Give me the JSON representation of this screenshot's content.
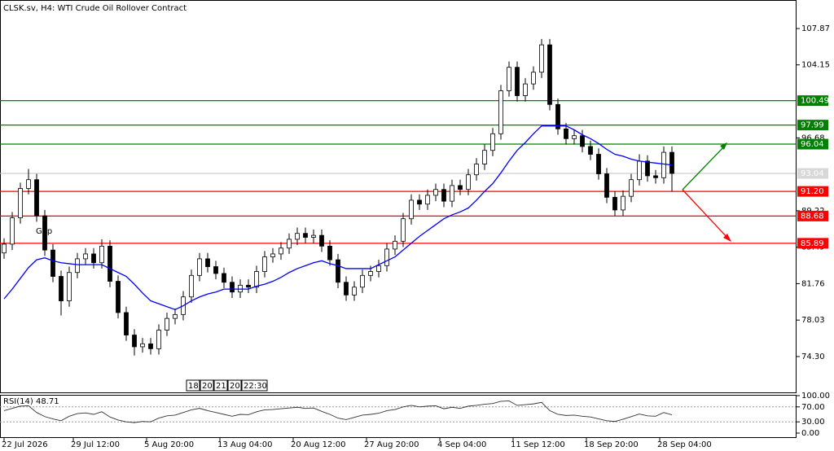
{
  "chart_data": {
    "type": "candlestick",
    "title": "CLSK.sv, H4:  WTI Crude Oil Rollover Contract",
    "annotation": "Gap",
    "candles": [
      [
        84.9,
        86.4,
        84.3,
        85.8
      ],
      [
        85.8,
        89.1,
        85.2,
        88.5
      ],
      [
        88.5,
        92.1,
        87.9,
        91.5
      ],
      [
        91.5,
        93.5,
        90.9,
        92.4
      ],
      [
        92.4,
        93.0,
        88.1,
        88.7
      ],
      [
        88.7,
        89.3,
        84.6,
        85.2
      ],
      [
        85.2,
        85.8,
        81.9,
        82.5
      ],
      [
        82.5,
        83.1,
        78.5,
        80.0
      ],
      [
        80.0,
        83.5,
        79.4,
        82.9
      ],
      [
        82.9,
        84.9,
        82.3,
        84.3
      ],
      [
        84.3,
        85.4,
        83.7,
        84.8
      ],
      [
        84.8,
        85.4,
        83.3,
        83.9
      ],
      [
        83.9,
        86.3,
        83.3,
        85.6
      ],
      [
        85.6,
        86.2,
        81.4,
        82.0
      ],
      [
        82.0,
        82.6,
        78.2,
        78.8
      ],
      [
        78.8,
        79.4,
        75.9,
        76.5
      ],
      [
        76.5,
        77.1,
        74.4,
        75.3
      ],
      [
        75.3,
        76.2,
        74.7,
        75.6
      ],
      [
        75.6,
        76.2,
        74.5,
        75.1
      ],
      [
        75.1,
        77.6,
        74.5,
        77.0
      ],
      [
        77.0,
        78.8,
        76.4,
        78.2
      ],
      [
        78.2,
        79.2,
        77.6,
        78.6
      ],
      [
        78.6,
        81.0,
        78.0,
        80.4
      ],
      [
        80.4,
        83.2,
        79.8,
        82.6
      ],
      [
        82.6,
        84.9,
        82.0,
        84.3
      ],
      [
        84.3,
        84.9,
        82.9,
        83.5
      ],
      [
        83.5,
        84.1,
        82.2,
        82.8
      ],
      [
        82.8,
        83.4,
        81.3,
        81.9
      ],
      [
        81.9,
        82.5,
        80.3,
        80.9
      ],
      [
        80.9,
        82.2,
        80.3,
        81.6
      ],
      [
        81.6,
        82.2,
        80.8,
        81.4
      ],
      [
        81.4,
        83.6,
        80.8,
        83.0
      ],
      [
        83.0,
        85.1,
        82.4,
        84.5
      ],
      [
        84.5,
        85.4,
        83.9,
        84.8
      ],
      [
        84.8,
        86.0,
        84.2,
        85.4
      ],
      [
        85.4,
        86.9,
        84.8,
        86.3
      ],
      [
        86.3,
        87.5,
        85.7,
        86.9
      ],
      [
        86.9,
        87.5,
        85.9,
        86.5
      ],
      [
        86.5,
        87.3,
        85.9,
        86.7
      ],
      [
        86.7,
        87.3,
        85.0,
        85.6
      ],
      [
        85.6,
        86.2,
        83.6,
        84.2
      ],
      [
        84.2,
        84.8,
        81.3,
        81.9
      ],
      [
        81.9,
        82.5,
        80.0,
        80.6
      ],
      [
        80.6,
        82.0,
        80.0,
        81.4
      ],
      [
        81.4,
        83.2,
        80.8,
        82.6
      ],
      [
        82.6,
        83.6,
        82.0,
        83.0
      ],
      [
        83.0,
        84.2,
        82.4,
        83.6
      ],
      [
        83.6,
        85.9,
        83.0,
        85.3
      ],
      [
        85.3,
        86.7,
        84.7,
        86.1
      ],
      [
        86.1,
        89.0,
        85.5,
        88.4
      ],
      [
        88.4,
        90.9,
        87.8,
        90.3
      ],
      [
        90.3,
        90.9,
        89.3,
        89.9
      ],
      [
        89.9,
        91.4,
        89.3,
        90.8
      ],
      [
        90.8,
        92.0,
        90.2,
        91.4
      ],
      [
        91.4,
        92.0,
        89.6,
        90.2
      ],
      [
        90.2,
        92.4,
        89.6,
        91.8
      ],
      [
        91.8,
        92.4,
        90.8,
        91.4
      ],
      [
        91.4,
        93.5,
        90.8,
        92.9
      ],
      [
        92.9,
        94.6,
        92.3,
        94.0
      ],
      [
        94.0,
        96.0,
        93.4,
        95.4
      ],
      [
        95.4,
        97.7,
        94.8,
        97.1
      ],
      [
        97.1,
        102.1,
        96.5,
        101.5
      ],
      [
        101.5,
        104.5,
        100.9,
        103.9
      ],
      [
        103.9,
        104.5,
        100.4,
        101.0
      ],
      [
        101.0,
        102.8,
        100.4,
        102.2
      ],
      [
        102.2,
        104.0,
        101.6,
        103.4
      ],
      [
        103.4,
        106.8,
        102.8,
        106.2
      ],
      [
        106.2,
        106.8,
        99.5,
        100.1
      ],
      [
        100.1,
        100.7,
        97.0,
        97.6
      ],
      [
        97.6,
        98.2,
        96.0,
        96.6
      ],
      [
        96.6,
        97.5,
        96.0,
        96.9
      ],
      [
        96.9,
        97.5,
        95.2,
        95.8
      ],
      [
        95.8,
        96.4,
        94.4,
        95.0
      ],
      [
        95.0,
        95.6,
        92.4,
        93.0
      ],
      [
        93.0,
        93.6,
        90.0,
        90.6
      ],
      [
        90.6,
        91.2,
        88.7,
        89.3
      ],
      [
        89.3,
        91.3,
        88.7,
        90.7
      ],
      [
        90.7,
        93.0,
        90.1,
        92.4
      ],
      [
        92.4,
        95.0,
        91.8,
        94.3
      ],
      [
        94.3,
        94.9,
        92.2,
        92.8
      ],
      [
        92.8,
        93.4,
        92.0,
        92.6
      ],
      [
        92.6,
        95.8,
        92.0,
        95.2
      ],
      [
        95.2,
        95.8,
        91.2,
        93.04
      ]
    ],
    "moving_average": {
      "color": "#0000ff",
      "values": [
        80.2,
        81.2,
        82.3,
        83.4,
        84.2,
        84.4,
        84.1,
        83.9,
        83.8,
        83.7,
        83.7,
        83.7,
        83.7,
        83.3,
        82.9,
        82.5,
        81.7,
        80.8,
        80.0,
        79.7,
        79.4,
        79.1,
        79.5,
        80.0,
        80.4,
        80.7,
        80.9,
        81.2,
        81.2,
        81.2,
        81.2,
        81.5,
        81.7,
        82.0,
        82.4,
        82.9,
        83.3,
        83.6,
        83.9,
        84.1,
        83.8,
        83.6,
        83.3,
        83.3,
        83.3,
        83.3,
        83.7,
        84.1,
        84.5,
        85.2,
        85.9,
        86.6,
        87.2,
        87.8,
        88.4,
        88.8,
        89.1,
        89.5,
        90.3,
        91.2,
        92.0,
        93.1,
        94.3,
        95.4,
        96.2,
        97.1,
        97.9,
        97.9,
        97.9,
        97.9,
        97.5,
        97.0,
        96.6,
        96.1,
        95.5,
        95.0,
        94.8,
        94.5,
        94.3,
        94.2,
        94.1,
        94.0,
        93.9
      ]
    },
    "levels": [
      {
        "value": 100.49,
        "label": "100.49",
        "color": "#008000"
      },
      {
        "value": 97.99,
        "label": "97.99",
        "color": "#008000"
      },
      {
        "value": 96.04,
        "label": "96.04",
        "color": "#008000"
      },
      {
        "value": 91.2,
        "label": "91.20",
        "color": "#ff0000"
      },
      {
        "value": 88.68,
        "label": "88.68",
        "color": "#ff0000"
      },
      {
        "value": 85.89,
        "label": "85.89",
        "color": "#ff0000"
      }
    ],
    "current_price": 93.04,
    "ylim": [
      70.63,
      110.79
    ],
    "yticks": [
      107.87,
      104.15,
      96.68,
      89.22,
      85.49,
      81.76,
      78.03,
      {
        "value": 74.3,
        "label": "74.30"
      }
    ],
    "xlim": [
      -0.5,
      97.2
    ],
    "xticks": [
      {
        "value": 0,
        "label": "22 Jul 2026"
      },
      {
        "value": 8.5,
        "label": "29 Jul 12:00"
      },
      {
        "value": 17.5,
        "label": "5 Aug 20:00"
      },
      {
        "value": 26.5,
        "label": "13 Aug 04:00"
      },
      {
        "value": 35.5,
        "label": "20 Aug 12:00"
      },
      {
        "value": 44.5,
        "label": "27 Aug 20:00"
      },
      {
        "value": 53.5,
        "label": "4 Sep 04:00"
      },
      {
        "value": 62.5,
        "label": "11 Sep 12:00"
      },
      {
        "value": 71.5,
        "label": "18 Sep 20:00"
      },
      {
        "value": 80.5,
        "label": "28 Sep 04:00"
      }
    ],
    "time_markers": [
      "18:",
      "20",
      "21",
      "20",
      "22:30"
    ],
    "rsi": {
      "title": "RSI(14) 48.71",
      "values": [
        60,
        66,
        72,
        73,
        55,
        44,
        38,
        33,
        45,
        52,
        54,
        50,
        57,
        43,
        35,
        30,
        28,
        31,
        30,
        40,
        46,
        48,
        55,
        62,
        66,
        60,
        55,
        50,
        45,
        50,
        49,
        57,
        62,
        63,
        65,
        67,
        69,
        66,
        67,
        58,
        50,
        40,
        36,
        42,
        48,
        50,
        53,
        60,
        63,
        70,
        74,
        70,
        72,
        73,
        65,
        69,
        66,
        72,
        74,
        77,
        79,
        85,
        86,
        74,
        76,
        78,
        82,
        60,
        50,
        47,
        48,
        45,
        43,
        38,
        33,
        31,
        37,
        44,
        51,
        46,
        45,
        55,
        48.71
      ],
      "ylim": [
        0,
        100
      ],
      "yticks": [
        {
          "value": 100,
          "label": "100.00"
        },
        {
          "value": 70,
          "label": "70.00"
        },
        {
          "value": 30,
          "label": "30.00"
        },
        {
          "value": 0,
          "label": "0.00"
        }
      ]
    }
  }
}
